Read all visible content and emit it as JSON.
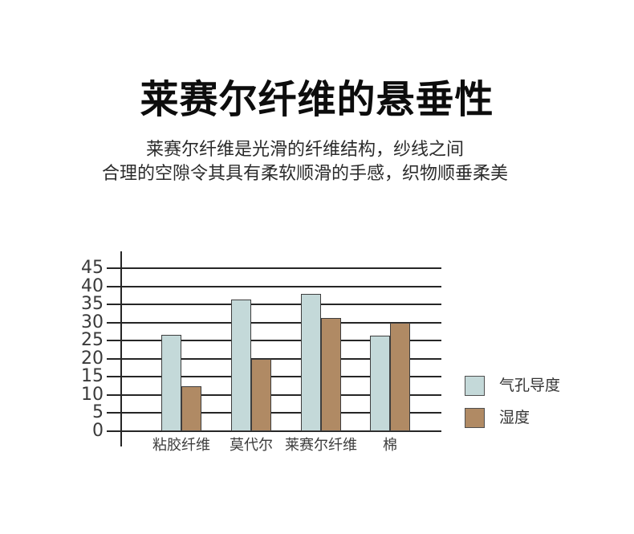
{
  "page": {
    "title": "莱赛尔纤维的悬垂性",
    "subtitle_line1": "莱赛尔纤维是光滑的纤维结构，纱线之间",
    "subtitle_line2": "合理的空隙令其具有柔软顺滑的手感，织物顺垂柔美"
  },
  "colors": {
    "background": "#ffffff",
    "title_text": "#0d0d0d",
    "subtitle_text": "#2b2b2b",
    "grid_line": "#262626",
    "axis_line": "#262626",
    "tick_text": "#3a3a3a",
    "category_text": "#3c3c3c",
    "legend_text": "#333333",
    "series1_fill": "#c4d9d9",
    "series2_fill": "#b08a64",
    "bar_border": "#3e3e3e"
  },
  "chart_data": {
    "type": "bar",
    "title": "",
    "xlabel": "",
    "ylabel": "",
    "categories": [
      "粘胶纤维",
      "莫代尔",
      "莱赛尔纤维",
      "棉"
    ],
    "series": [
      {
        "name": "气孔导度",
        "color": "#c4d9d9",
        "values": [
          26.5,
          36.3,
          38,
          26.3
        ]
      },
      {
        "name": "湿度",
        "color": "#b08a64",
        "values": [
          12.5,
          20,
          31.3,
          30
        ]
      }
    ],
    "ylim": [
      0,
      45
    ],
    "yticks": [
      0,
      5,
      10,
      15,
      20,
      25,
      30,
      35,
      40,
      45
    ],
    "grid": "horizontal",
    "legend_position": "right"
  }
}
